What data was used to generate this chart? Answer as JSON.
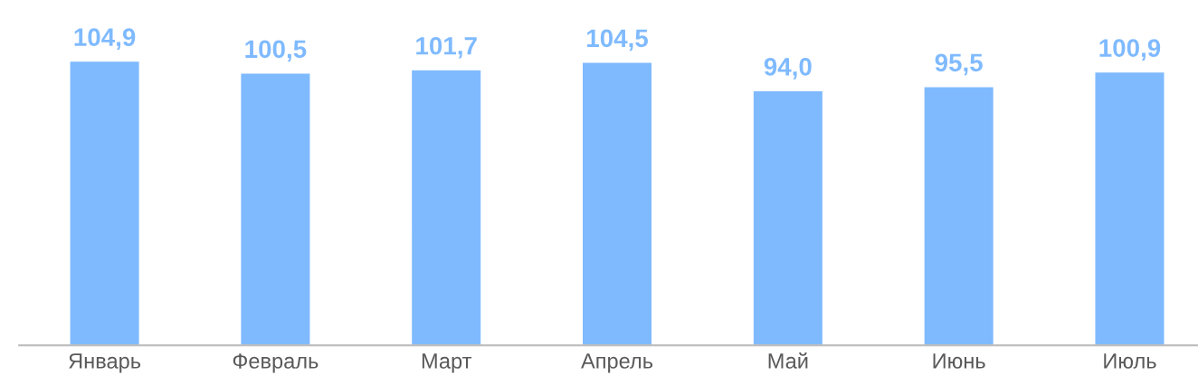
{
  "chart_data": {
    "type": "bar",
    "categories": [
      "Январь",
      "Февраль",
      "Март",
      "Апрель",
      "Май",
      "Июнь",
      "Июль"
    ],
    "values": [
      104.9,
      100.5,
      101.7,
      104.5,
      94.0,
      95.5,
      100.9
    ],
    "value_labels": [
      "104,9",
      "100,5",
      "101,7",
      "104,5",
      "94,0",
      "95,5",
      "100,9"
    ],
    "color": "#7fbaff",
    "tick_labels": "x",
    "grid": false,
    "legend": false
  }
}
